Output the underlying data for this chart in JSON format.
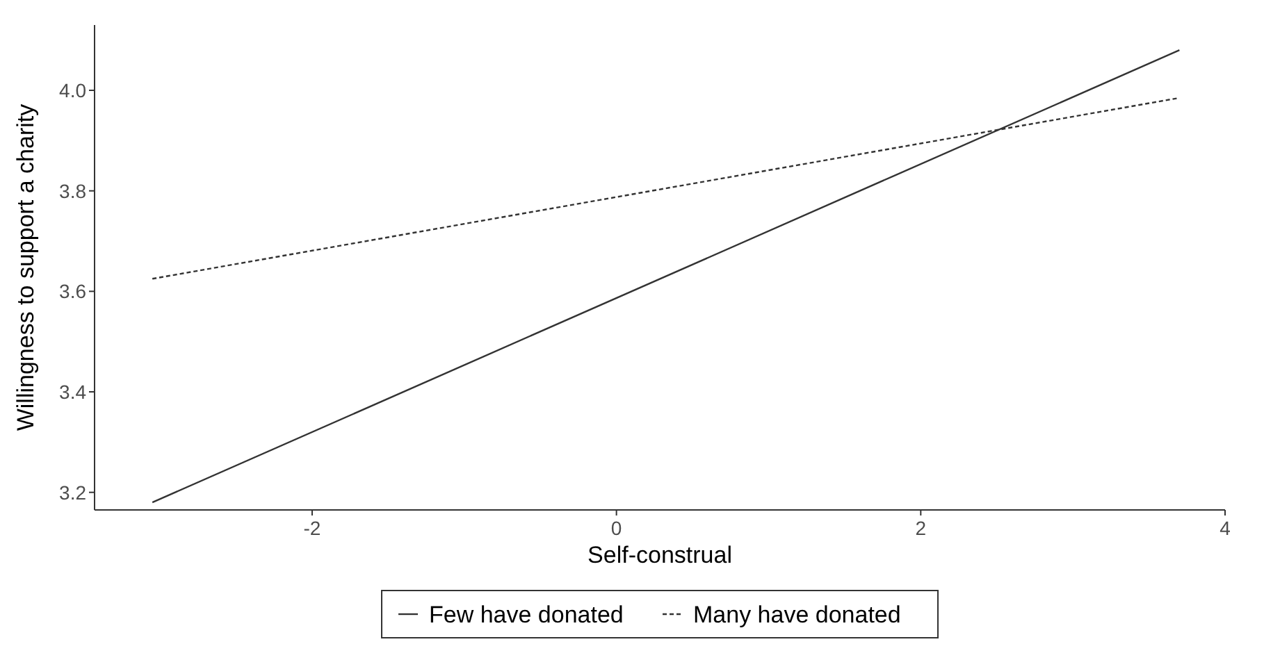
{
  "chart_data": {
    "type": "line",
    "xlabel": "Self-construal",
    "ylabel": "Willingness to support a charity",
    "xlim": [
      -3.43,
      4.0
    ],
    "xticks": [
      -2,
      0,
      2,
      4
    ],
    "ylim": [
      3.165,
      4.13
    ],
    "yticks": [
      {
        "value": 3.2,
        "label": "3.2"
      },
      {
        "value": 3.4,
        "label": "3.4"
      },
      {
        "value": 3.6,
        "label": "3.6"
      },
      {
        "value": 3.8,
        "label": "3.8"
      },
      {
        "value": 4.0,
        "label": "4.0"
      }
    ],
    "x": [
      -3.05,
      3.7
    ],
    "grid": false,
    "legend": "bottom",
    "marker": "none",
    "series": [
      {
        "name": "Few have donated",
        "color": "#333333",
        "line_style": "solid",
        "values": [
          3.18,
          4.08
        ]
      },
      {
        "name": "Many have donated",
        "color": "#333333",
        "line_style": "dashed",
        "values": [
          3.625,
          3.985
        ]
      }
    ]
  }
}
